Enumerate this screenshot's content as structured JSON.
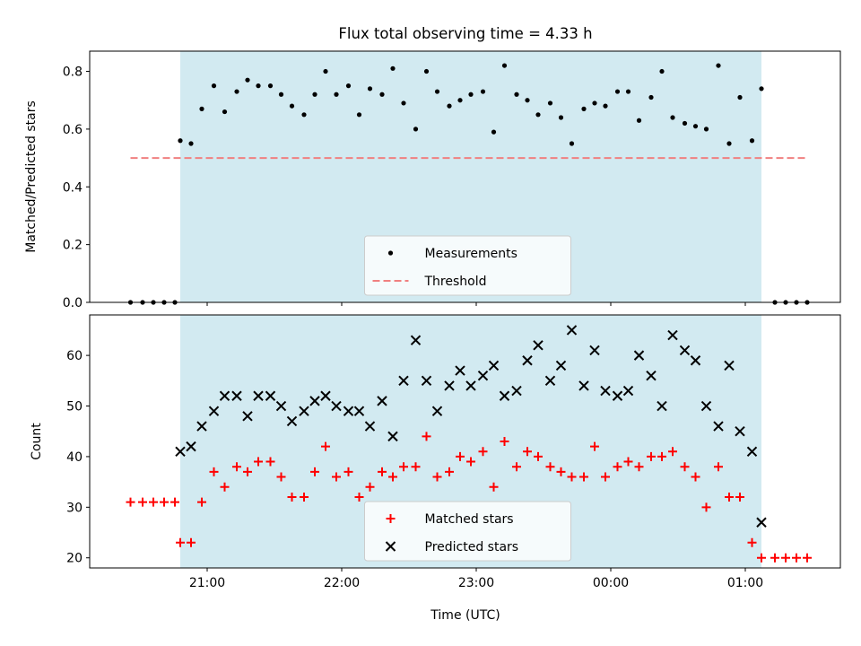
{
  "chart_data": [
    {
      "type": "scatter",
      "title": "Flux total observing time = 4.33 h",
      "xlabel": "",
      "ylabel": "Matched/Predicted stars",
      "ylim": [
        0,
        0.87
      ],
      "yticks": [
        0.0,
        0.2,
        0.4,
        0.6,
        0.8
      ],
      "ytick_labels": [
        "0.0",
        "0.2",
        "0.4",
        "0.6",
        "0.8"
      ],
      "xticks_hours": [
        21,
        22,
        23,
        24,
        25
      ],
      "observing_window_hours": [
        20.8,
        25.12
      ],
      "observing_window_color": "#add8e6",
      "grid": false,
      "legend_position": "lower center",
      "series": [
        {
          "name": "Measurements",
          "color": "#000000",
          "marker": "dot",
          "x": [
            20.43,
            20.52,
            20.6,
            20.68,
            20.76,
            20.8,
            20.88,
            20.96,
            21.05,
            21.13,
            21.22,
            21.3,
            21.38,
            21.47,
            21.55,
            21.63,
            21.72,
            21.8,
            21.88,
            21.96,
            22.05,
            22.13,
            22.21,
            22.3,
            22.38,
            22.46,
            22.55,
            22.63,
            22.71,
            22.8,
            22.88,
            22.96,
            23.05,
            23.13,
            23.21,
            23.3,
            23.38,
            23.46,
            23.55,
            23.63,
            23.71,
            23.8,
            23.88,
            23.96,
            24.05,
            24.13,
            24.21,
            24.3,
            24.38,
            24.46,
            24.55,
            24.63,
            24.71,
            24.8,
            24.88,
            24.96,
            25.05,
            25.12,
            25.22,
            25.3,
            25.38,
            25.46
          ],
          "y": [
            0,
            0,
            0,
            0,
            0,
            0.56,
            0.55,
            0.67,
            0.75,
            0.66,
            0.73,
            0.77,
            0.75,
            0.75,
            0.72,
            0.68,
            0.65,
            0.72,
            0.8,
            0.72,
            0.75,
            0.65,
            0.74,
            0.72,
            0.81,
            0.69,
            0.6,
            0.8,
            0.73,
            0.68,
            0.7,
            0.72,
            0.73,
            0.59,
            0.82,
            0.72,
            0.7,
            0.65,
            0.69,
            0.64,
            0.55,
            0.67,
            0.69,
            0.68,
            0.73,
            0.73,
            0.63,
            0.71,
            0.8,
            0.64,
            0.62,
            0.61,
            0.6,
            0.82,
            0.55,
            0.71,
            0.56,
            0.74,
            0,
            0,
            0,
            0
          ]
        },
        {
          "name": "Threshold",
          "color": "#f08080",
          "style": "dashed",
          "x": [
            20.43,
            25.46
          ],
          "y": [
            0.5,
            0.5
          ]
        }
      ]
    },
    {
      "type": "scatter",
      "title": "",
      "xlabel": "Time (UTC)",
      "ylabel": "Count",
      "ylim": [
        18,
        68
      ],
      "yticks": [
        20,
        30,
        40,
        50,
        60
      ],
      "ytick_labels": [
        "20",
        "30",
        "40",
        "50",
        "60"
      ],
      "xticks_hours": [
        21,
        22,
        23,
        24,
        25
      ],
      "xtick_labels": [
        "21:00",
        "22:00",
        "23:00",
        "00:00",
        "01:00"
      ],
      "observing_window_hours": [
        20.8,
        25.12
      ],
      "observing_window_color": "#add8e6",
      "grid": false,
      "legend_position": "lower center",
      "series": [
        {
          "name": "Matched stars",
          "color": "#ff0000",
          "marker": "plus",
          "x": [
            20.43,
            20.52,
            20.6,
            20.68,
            20.76,
            20.8,
            20.88,
            20.96,
            21.05,
            21.13,
            21.22,
            21.3,
            21.38,
            21.47,
            21.55,
            21.63,
            21.72,
            21.8,
            21.88,
            21.96,
            22.05,
            22.13,
            22.21,
            22.3,
            22.38,
            22.46,
            22.55,
            22.63,
            22.71,
            22.8,
            22.88,
            22.96,
            23.05,
            23.13,
            23.21,
            23.3,
            23.38,
            23.46,
            23.55,
            23.63,
            23.71,
            23.8,
            23.88,
            23.96,
            24.05,
            24.13,
            24.21,
            24.3,
            24.38,
            24.46,
            24.55,
            24.63,
            24.71,
            24.8,
            24.88,
            24.96,
            25.05,
            25.12,
            25.22,
            25.3,
            25.38,
            25.46
          ],
          "y": [
            31,
            31,
            31,
            31,
            31,
            23,
            23,
            31,
            37,
            34,
            38,
            37,
            39,
            39,
            36,
            32,
            32,
            37,
            42,
            36,
            37,
            32,
            34,
            37,
            36,
            38,
            38,
            44,
            36,
            37,
            40,
            39,
            41,
            34,
            43,
            38,
            41,
            40,
            38,
            37,
            36,
            36,
            42,
            36,
            38,
            39,
            38,
            40,
            40,
            41,
            38,
            36,
            30,
            38,
            32,
            32,
            23,
            20,
            20,
            20,
            20,
            20
          ]
        },
        {
          "name": "Predicted stars",
          "color": "#000000",
          "marker": "x",
          "x": [
            20.8,
            20.88,
            20.96,
            21.05,
            21.13,
            21.22,
            21.3,
            21.38,
            21.47,
            21.55,
            21.63,
            21.72,
            21.8,
            21.88,
            21.96,
            22.05,
            22.13,
            22.21,
            22.3,
            22.38,
            22.46,
            22.55,
            22.63,
            22.71,
            22.8,
            22.88,
            22.96,
            23.05,
            23.13,
            23.21,
            23.3,
            23.38,
            23.46,
            23.55,
            23.63,
            23.71,
            23.8,
            23.88,
            23.96,
            24.05,
            24.13,
            24.21,
            24.3,
            24.38,
            24.46,
            24.55,
            24.63,
            24.71,
            24.8,
            24.88,
            24.96,
            25.05,
            25.12
          ],
          "y": [
            41,
            42,
            46,
            49,
            52,
            52,
            48,
            52,
            52,
            50,
            47,
            49,
            51,
            52,
            50,
            49,
            49,
            46,
            51,
            44,
            55,
            63,
            55,
            49,
            54,
            57,
            54,
            56,
            58,
            52,
            53,
            59,
            62,
            55,
            58,
            65,
            54,
            61,
            53,
            52,
            53,
            60,
            56,
            50,
            64,
            61,
            59,
            50,
            46,
            58,
            45,
            41,
            27
          ]
        }
      ]
    }
  ]
}
